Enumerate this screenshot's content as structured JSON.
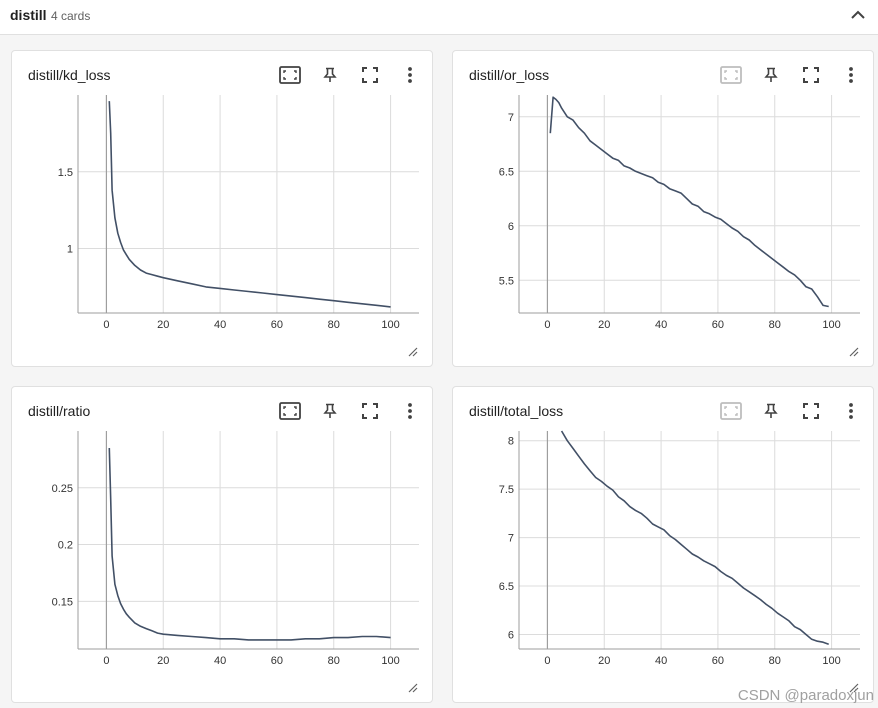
{
  "group": {
    "title": "distill",
    "count": "4 cards"
  },
  "icons": {
    "collapse": "chevron-up-icon",
    "fit": "fit-domain-icon",
    "pin": "pin-icon",
    "fullscreen": "fullscreen-icon",
    "more": "more-vert-icon",
    "resize": "resize-handle-icon"
  },
  "colors": {
    "line": "#425066",
    "grid": "#dcdcdc",
    "axis": "#9e9e9e"
  },
  "watermark": "CSDN @paradoxjun",
  "cards": [
    {
      "title": "distill/kd_loss",
      "fit_enabled": true
    },
    {
      "title": "distill/or_loss",
      "fit_enabled": false
    },
    {
      "title": "distill/ratio",
      "fit_enabled": true
    },
    {
      "title": "distill/total_loss",
      "fit_enabled": false
    }
  ],
  "chart_data": [
    {
      "type": "line",
      "title": "distill/kd_loss",
      "xlim": [
        -10,
        110
      ],
      "ylim": [
        0.58,
        2.0
      ],
      "xticks": [
        0,
        20,
        40,
        60,
        80,
        100
      ],
      "yticks": [
        1,
        1.5
      ],
      "ytick_labels": [
        "1",
        "1.5"
      ],
      "series": [
        {
          "x": [
            1,
            1.5,
            2,
            3,
            4,
            5,
            6,
            7,
            8,
            10,
            12,
            14,
            16,
            18,
            20,
            25,
            30,
            35,
            40,
            45,
            50,
            55,
            60,
            65,
            70,
            75,
            80,
            85,
            90,
            95,
            100
          ],
          "y": [
            1.96,
            1.75,
            1.38,
            1.2,
            1.1,
            1.04,
            0.99,
            0.96,
            0.93,
            0.89,
            0.86,
            0.84,
            0.83,
            0.82,
            0.81,
            0.79,
            0.77,
            0.75,
            0.74,
            0.73,
            0.72,
            0.71,
            0.7,
            0.69,
            0.68,
            0.67,
            0.66,
            0.65,
            0.64,
            0.63,
            0.62
          ]
        }
      ]
    },
    {
      "type": "line",
      "title": "distill/or_loss",
      "xlim": [
        -10,
        110
      ],
      "ylim": [
        5.2,
        7.2
      ],
      "xticks": [
        0,
        20,
        40,
        60,
        80,
        100
      ],
      "yticks": [
        5.5,
        6,
        6.5,
        7
      ],
      "ytick_labels": [
        "5.5",
        "6",
        "6.5",
        "7"
      ],
      "series": [
        {
          "x": [
            1,
            2,
            3,
            4,
            5,
            7,
            9,
            11,
            13,
            15,
            17,
            19,
            21,
            23,
            25,
            27,
            29,
            31,
            33,
            35,
            37,
            39,
            41,
            43,
            45,
            47,
            49,
            51,
            53,
            55,
            57,
            59,
            61,
            63,
            65,
            67,
            69,
            71,
            73,
            75,
            77,
            79,
            81,
            83,
            85,
            87,
            89,
            91,
            93,
            95,
            97,
            99
          ],
          "y": [
            6.85,
            7.18,
            7.16,
            7.13,
            7.08,
            7.0,
            6.97,
            6.9,
            6.85,
            6.78,
            6.74,
            6.7,
            6.66,
            6.62,
            6.6,
            6.55,
            6.53,
            6.5,
            6.48,
            6.46,
            6.44,
            6.4,
            6.38,
            6.34,
            6.32,
            6.3,
            6.25,
            6.2,
            6.18,
            6.13,
            6.11,
            6.08,
            6.06,
            6.02,
            5.98,
            5.95,
            5.9,
            5.87,
            5.82,
            5.78,
            5.74,
            5.7,
            5.66,
            5.62,
            5.58,
            5.55,
            5.5,
            5.44,
            5.42,
            5.35,
            5.27,
            5.26
          ]
        }
      ]
    },
    {
      "type": "line",
      "title": "distill/ratio",
      "xlim": [
        -10,
        110
      ],
      "ylim": [
        0.108,
        0.3
      ],
      "xticks": [
        0,
        20,
        40,
        60,
        80,
        100
      ],
      "yticks": [
        0.15,
        0.2,
        0.25
      ],
      "ytick_labels": [
        "0.15",
        "0.2",
        "0.25"
      ],
      "series": [
        {
          "x": [
            1,
            1.5,
            2,
            3,
            4,
            5,
            6,
            7,
            8,
            10,
            12,
            14,
            16,
            18,
            20,
            25,
            30,
            35,
            40,
            45,
            50,
            55,
            60,
            65,
            70,
            75,
            80,
            85,
            90,
            95,
            100
          ],
          "y": [
            0.285,
            0.24,
            0.19,
            0.165,
            0.155,
            0.148,
            0.143,
            0.139,
            0.136,
            0.131,
            0.128,
            0.126,
            0.124,
            0.122,
            0.121,
            0.12,
            0.119,
            0.118,
            0.117,
            0.117,
            0.116,
            0.116,
            0.116,
            0.116,
            0.117,
            0.117,
            0.118,
            0.118,
            0.119,
            0.119,
            0.118
          ]
        }
      ]
    },
    {
      "type": "line",
      "title": "distill/total_loss",
      "xlim": [
        -10,
        110
      ],
      "ylim": [
        5.85,
        8.1
      ],
      "xticks": [
        0,
        20,
        40,
        60,
        80,
        100
      ],
      "yticks": [
        6,
        6.5,
        7,
        7.5,
        8
      ],
      "ytick_labels": [
        "6",
        "6.5",
        "7",
        "7.5",
        "8"
      ],
      "series": [
        {
          "x": [
            5,
            7,
            9,
            11,
            13,
            15,
            17,
            19,
            21,
            23,
            25,
            27,
            29,
            31,
            33,
            35,
            37,
            39,
            41,
            43,
            45,
            47,
            49,
            51,
            53,
            55,
            57,
            59,
            61,
            63,
            65,
            67,
            69,
            71,
            73,
            75,
            77,
            79,
            81,
            83,
            85,
            87,
            89,
            91,
            93,
            95,
            97,
            99
          ],
          "y": [
            8.1,
            8.0,
            7.92,
            7.84,
            7.76,
            7.69,
            7.62,
            7.58,
            7.53,
            7.49,
            7.42,
            7.38,
            7.32,
            7.28,
            7.25,
            7.2,
            7.14,
            7.11,
            7.08,
            7.02,
            6.98,
            6.93,
            6.88,
            6.83,
            6.8,
            6.76,
            6.73,
            6.7,
            6.65,
            6.61,
            6.58,
            6.53,
            6.48,
            6.44,
            6.4,
            6.36,
            6.31,
            6.27,
            6.22,
            6.18,
            6.14,
            6.08,
            6.05,
            6.0,
            5.95,
            5.93,
            5.92,
            5.9
          ]
        }
      ]
    }
  ]
}
